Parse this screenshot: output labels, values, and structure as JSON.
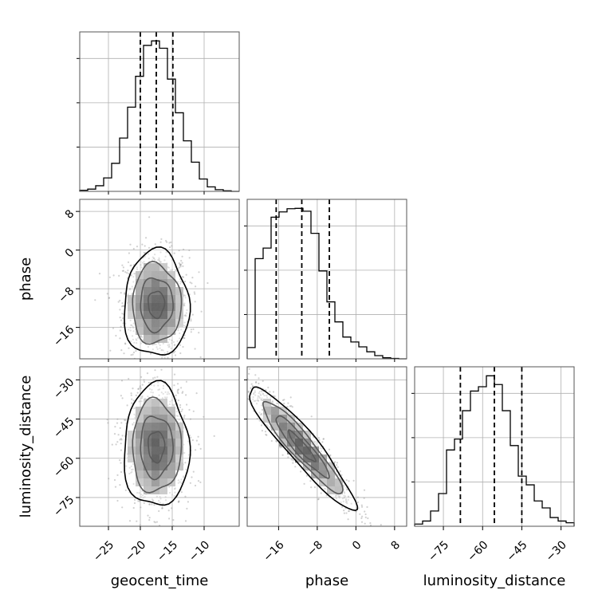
{
  "chart_data": {
    "type": "corner",
    "grid": true,
    "params": [
      {
        "label": "geocent_time",
        "range": [
          -29.5,
          -4.5
        ],
        "ticks": [
          -25,
          -20,
          -15,
          -10
        ],
        "tick_labels": [
          "−25",
          "−20",
          "−15",
          "−10"
        ],
        "quantiles": [
          -20.0,
          -17.5,
          -14.9
        ],
        "hist": {
          "edges": [
            -29.5,
            -28.25,
            -27.0,
            -25.75,
            -24.5,
            -23.25,
            -22.0,
            -20.75,
            -19.5,
            -18.25,
            -17.0,
            -15.75,
            -14.5,
            -13.25,
            -12.0,
            -10.75,
            -9.5,
            -8.25,
            -7.0,
            -5.75,
            -4.5
          ],
          "counts": [
            2,
            4,
            10,
            24,
            50,
            95,
            150,
            205,
            260,
            268,
            255,
            200,
            140,
            90,
            52,
            22,
            8,
            3,
            1,
            0
          ]
        }
      },
      {
        "label": "phase",
        "range": [
          -22.5,
          10.5
        ],
        "ticks": [
          -16,
          -8,
          0,
          8
        ],
        "tick_labels": [
          "−16",
          "−8",
          "0",
          "8"
        ],
        "quantiles": [
          -16.5,
          -11.2,
          -5.5
        ],
        "hist": {
          "edges": [
            -22.5,
            -20.85,
            -19.2,
            -17.55,
            -15.9,
            -14.25,
            -12.6,
            -10.95,
            -9.3,
            -7.65,
            -6.0,
            -4.35,
            -2.7,
            -1.05,
            0.6,
            2.25,
            3.9,
            5.55,
            7.2,
            8.85,
            10.5
          ],
          "counts": [
            32,
            285,
            315,
            403,
            418,
            427,
            428,
            420,
            357,
            250,
            162,
            105,
            62,
            48,
            34,
            20,
            9,
            3,
            1,
            0
          ]
        }
      },
      {
        "label": "luminosity_distance",
        "range": [
          -86,
          -25
        ],
        "ticks": [
          -75,
          -60,
          -45,
          -30
        ],
        "tick_labels": [
          "−75",
          "−60",
          "−45",
          "−30"
        ],
        "quantiles": [
          -68.5,
          -55.5,
          -45.0
        ],
        "hist": {
          "edges": [
            -86.0,
            -82.95,
            -79.9,
            -76.85,
            -73.8,
            -70.75,
            -67.7,
            -64.65,
            -61.6,
            -58.55,
            -55.5,
            -52.45,
            -49.4,
            -46.35,
            -43.3,
            -40.25,
            -37.2,
            -34.15,
            -31.1,
            -28.05,
            -25.0
          ],
          "counts": [
            5,
            12,
            35,
            75,
            175,
            200,
            265,
            310,
            320,
            345,
            325,
            265,
            185,
            115,
            95,
            58,
            42,
            20,
            12,
            8
          ]
        }
      }
    ],
    "correlations": {
      "1_0": 0.0,
      "2_0": 0.0,
      "2_1": -0.93
    },
    "contour_levels": [
      0.118,
      0.393,
      0.675,
      0.865
    ]
  }
}
